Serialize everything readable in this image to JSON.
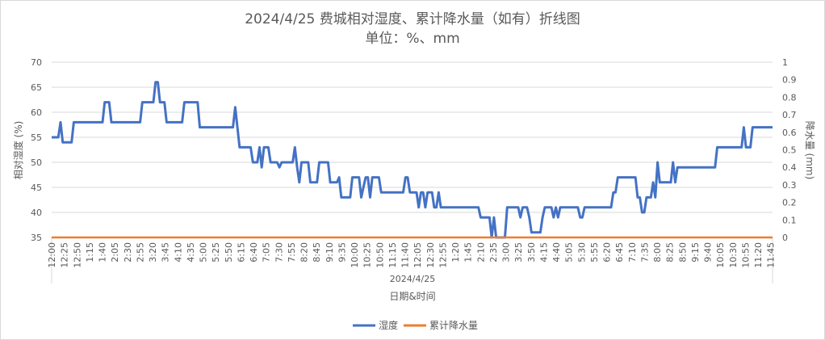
{
  "chart_data": {
    "type": "line",
    "title": "2024/4/25 费城相对湿度、累计降水量（如有）折线图",
    "subtitle": "单位：%、mm",
    "xlabel": "日期&时间",
    "x_group_label": "2024/4/25",
    "ylabel_left": "相对湿度 (%)",
    "ylabel_right": "降水量 (mm)",
    "ylim_left": [
      35,
      70
    ],
    "ylim_right": [
      0,
      1
    ],
    "yticks_left": [
      "35",
      "40",
      "45",
      "50",
      "55",
      "60",
      "65",
      "70"
    ],
    "yticks_right": [
      "0",
      "0.1",
      "0.2",
      "0.3",
      "0.4",
      "0.5",
      "0.6",
      "0.7",
      "0.8",
      "0.9",
      "1"
    ],
    "grid": true,
    "legend_position": "bottom",
    "x_tick_labels": [
      "12:00",
      "12:25",
      "12:50",
      "1:15",
      "1:40",
      "2:05",
      "2:30",
      "2:55",
      "3:20",
      "3:45",
      "4:10",
      "4:35",
      "5:00",
      "5:25",
      "5:50",
      "6:15",
      "6:40",
      "7:05",
      "7:30",
      "7:55",
      "8:20",
      "8:45",
      "9:10",
      "9:35",
      "10:00",
      "10:25",
      "10:50",
      "11:15",
      "11:40",
      "12:05",
      "12:30",
      "12:55",
      "1:20",
      "1:45",
      "2:10",
      "2:35",
      "3:00",
      "3:25",
      "3:50",
      "4:15",
      "4:40",
      "5:05",
      "5:30",
      "5:55",
      "6:20",
      "6:45",
      "7:10",
      "7:35",
      "8:00",
      "8:25",
      "8:50",
      "9:15",
      "9:40",
      "10:05",
      "10:30",
      "10:55",
      "11:20",
      "11:45"
    ],
    "series": [
      {
        "name": "湿度",
        "color": "#4472C4",
        "axis": "left",
        "values": [
          55,
          55,
          55,
          55,
          58,
          54,
          54,
          54,
          54,
          54,
          58,
          58,
          58,
          58,
          58,
          58,
          58,
          58,
          58,
          58,
          58,
          58,
          58,
          58,
          62,
          62,
          62,
          58,
          58,
          58,
          58,
          58,
          58,
          58,
          58,
          58,
          58,
          58,
          58,
          58,
          58,
          62,
          62,
          62,
          62,
          62,
          62,
          66,
          66,
          62,
          62,
          62,
          58,
          58,
          58,
          58,
          58,
          58,
          58,
          58,
          62,
          62,
          62,
          62,
          62,
          62,
          62,
          57,
          57,
          57,
          57,
          57,
          57,
          57,
          57,
          57,
          57,
          57,
          57,
          57,
          57,
          57,
          57,
          61,
          57,
          53,
          53,
          53,
          53,
          53,
          53,
          50,
          50,
          50,
          53,
          49,
          53,
          53,
          53,
          50,
          50,
          50,
          50,
          49,
          50,
          50,
          50,
          50,
          50,
          50,
          53,
          49,
          46,
          50,
          50,
          50,
          50,
          46,
          46,
          46,
          46,
          50,
          50,
          50,
          50,
          50,
          46,
          46,
          46,
          46,
          47,
          43,
          43,
          43,
          43,
          43,
          47,
          47,
          47,
          47,
          43,
          45,
          47,
          47,
          43,
          47,
          47,
          47,
          47,
          44,
          44,
          44,
          44,
          44,
          44,
          44,
          44,
          44,
          44,
          44,
          47,
          47,
          44,
          44,
          44,
          44,
          41,
          44,
          44,
          41,
          44,
          44,
          44,
          41,
          41,
          44,
          41,
          41,
          41,
          41,
          41,
          41,
          41,
          41,
          41,
          41,
          41,
          41,
          41,
          41,
          41,
          41,
          41,
          41,
          39,
          39,
          39,
          39,
          39,
          35,
          39,
          35,
          35,
          35,
          35,
          35,
          41,
          41,
          41,
          41,
          41,
          41,
          39,
          41,
          41,
          41,
          39,
          36,
          36,
          36,
          36,
          36,
          39,
          41,
          41,
          41,
          41,
          39,
          41,
          39,
          41,
          41,
          41,
          41,
          41,
          41,
          41,
          41,
          41,
          39,
          39,
          41,
          41,
          41,
          41,
          41,
          41,
          41,
          41,
          41,
          41,
          41,
          41,
          41,
          44,
          44,
          47,
          47,
          47,
          47,
          47,
          47,
          47,
          47,
          47,
          43,
          43,
          40,
          40,
          43,
          43,
          43,
          46,
          43,
          50,
          46,
          46,
          46,
          46,
          46,
          46,
          50,
          46,
          49,
          49,
          49,
          49,
          49,
          49,
          49,
          49,
          49,
          49,
          49,
          49,
          49,
          49,
          49,
          49,
          49,
          49,
          53,
          53,
          53,
          53,
          53,
          53,
          53,
          53,
          53,
          53,
          53,
          53,
          57,
          53,
          53,
          53,
          57,
          57,
          57,
          57,
          57,
          57,
          57,
          57,
          57,
          57
        ]
      },
      {
        "name": "累计降水量",
        "color": "#ED7D31",
        "axis": "right",
        "values": [
          0,
          0
        ]
      }
    ]
  }
}
